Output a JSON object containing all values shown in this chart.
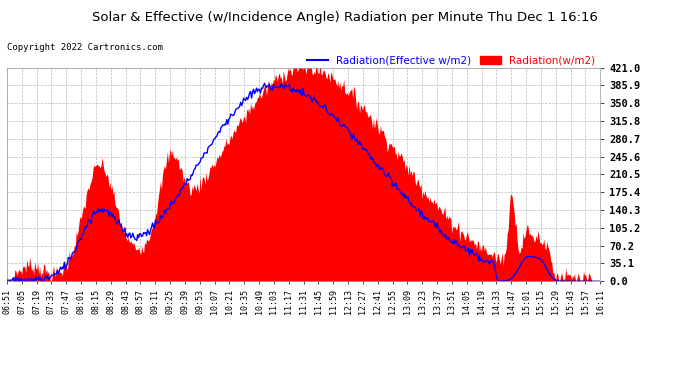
{
  "title": "Solar & Effective (w/Incidence Angle) Radiation per Minute Thu Dec 1 16:16",
  "copyright": "Copyright 2022 Cartronics.com",
  "legend_blue": "Radiation(Effective w/m2)",
  "legend_red": "Radiation(w/m2)",
  "yticks": [
    0.0,
    35.1,
    70.2,
    105.2,
    140.3,
    175.4,
    210.5,
    245.6,
    280.7,
    315.8,
    350.8,
    385.9,
    421.0
  ],
  "ymax": 421.0,
  "background_color": "#ffffff",
  "plot_bg_color": "#ffffff",
  "grid_color": "#bbbbbb",
  "red_color": "#ff0000",
  "blue_color": "#0000ff",
  "title_color": "#000000",
  "copyright_color": "#000000",
  "xtick_labels": [
    "06:51",
    "07:05",
    "07:19",
    "07:33",
    "07:47",
    "08:01",
    "08:15",
    "08:29",
    "08:43",
    "08:57",
    "09:11",
    "09:25",
    "09:39",
    "09:53",
    "10:07",
    "10:21",
    "10:35",
    "10:49",
    "11:03",
    "11:17",
    "11:31",
    "11:45",
    "11:59",
    "12:13",
    "12:27",
    "12:41",
    "12:55",
    "13:09",
    "13:23",
    "13:37",
    "13:51",
    "14:05",
    "14:19",
    "14:33",
    "14:47",
    "15:01",
    "15:15",
    "15:29",
    "15:43",
    "15:57",
    "16:11"
  ],
  "n_points": 600
}
